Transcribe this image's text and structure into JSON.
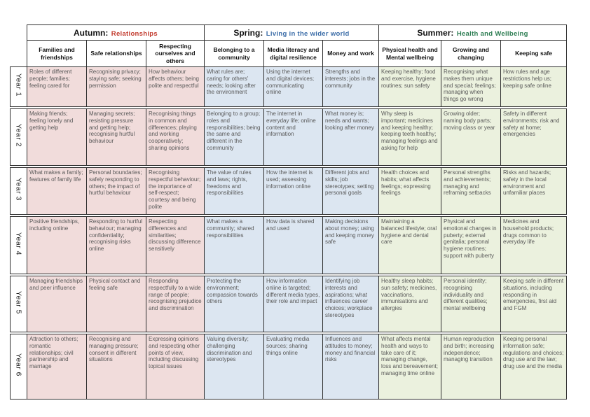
{
  "terms": [
    {
      "label": "Autumn:",
      "subtitle": "Relationships",
      "accent": "#c23b2e",
      "cell_bg": "#f1dcdb",
      "columns": [
        "Families and friendships",
        "Safe relationships",
        "Respecting ourselves and others"
      ]
    },
    {
      "label": "Spring:",
      "subtitle": "Living in the wider world",
      "accent": "#3c6da8",
      "cell_bg": "#dce6f1",
      "columns": [
        "Belonging to a community",
        "Media literacy and digital resilience",
        "Money and work"
      ]
    },
    {
      "label": "Summer:",
      "subtitle": "Health and Wellbeing",
      "accent": "#2c7d52",
      "cell_bg": "#ebf1de",
      "columns": [
        "Physical health and Mental wellbeing",
        "Growing and changing",
        "Keeping safe"
      ]
    }
  ],
  "years": [
    {
      "label": "Year 1",
      "cells": [
        "Roles of different people; families; feeling cared for",
        "Recognising privacy; staying safe; seeking permission",
        "How behaviour affects others; being polite and respectful",
        "What rules are; caring for others' needs; looking after the environment",
        "Using the internet and digital devices; communicating online",
        "Strengths and interests; jobs in the community",
        "Keeping healthy; food and exercise, hygiene routines; sun safety",
        "Recognising what makes them unique and special; feelings; managing when things go wrong",
        "How rules and age restrictions help us; keeping safe online"
      ]
    },
    {
      "label": "Year 2",
      "cells": [
        "Making friends; feeling lonely and getting help",
        "Managing secrets; resisting pressure and getting help; recognising hurtful behaviour",
        "Recognising things in common and differences; playing and working cooperatively; sharing opinions",
        "Belonging to a group; roles and responsibilities; being the same and different in the community",
        "The internet in everyday life; online content and information",
        "What money is; needs and wants; looking after money",
        "Why sleep is important; medicines and keeping healthy; keeping teeth healthy; managing feelings and asking for help",
        "Growing older; naming body parts; moving class or year",
        "Safety in different environments; risk and safety at home; emergencies"
      ]
    },
    {
      "label": "Year 3",
      "cells": [
        "What makes a family; features of family life",
        "Personal boundaries; safely responding to others; the impact of hurtful behaviour",
        "Recognising respectful behaviour; the importance of self-respect; courtesy and being polite",
        "The value of rules and laws; rights, freedoms and responsibilities",
        "How the internet is used; assessing information online",
        "Different jobs and skills; job stereotypes; setting personal goals",
        "Health choices and habits; what affects feelings; expressing feelings",
        "Personal strengths and achievements; managing and reframing setbacks",
        "Risks and hazards; safety in the local environment and unfamiliar places"
      ]
    },
    {
      "label": "Year 4",
      "cells": [
        "Positive friendships, including online",
        "Responding to hurtful behaviour; managing confidentiality; recognising risks online",
        "Respecting differences and similarities; discussing difference sensitively",
        "What makes a community; shared responsibilities",
        "How data is shared and used",
        "Making decisions about money; using and keeping money safe",
        "Maintaining a balanced lifestyle; oral hygiene and dental care",
        "Physical and emotional changes in puberty; external genitalia; personal hygiene routines; support with puberty",
        "Medicines and household products; drugs common to everyday life"
      ]
    },
    {
      "label": "Year 5",
      "cells": [
        "Managing friendships and peer influence",
        "Physical contact and feeling safe",
        "Responding respectfully to a wide range of people; recognising prejudice and discrimination",
        "Protecting the environment; compassion towards others",
        "How information online is targeted; different media types, their role and impact",
        "Identifying job interests and aspirations; what influences career choices; workplace stereotypes",
        "Healthy sleep habits; sun safety; medicines, vaccinations, immunisations and allergies",
        "Personal identity; recognising individuality and different qualities; mental wellbeing",
        "Keeping safe in different situations, including responding in emergencies, first aid and FGM"
      ]
    },
    {
      "label": "Year 6",
      "cells": [
        "Attraction to others; romantic relationships; civil partnership and marriage",
        "Recognising and managing pressure; consent in different situations",
        "Expressing opinions and respecting other points of view, including discussing topical issues",
        "Valuing diversity; challenging discrimination and stereotypes",
        "Evaluating media sources; sharing things online",
        "Influences and attitudes to money; money and financial risks",
        "What affects mental health and ways to take care of it; managing change, loss and bereavement; managing time online",
        "Human reproduction and birth; increasing independence; managing transition",
        "Keeping personal information safe; regulations and choices; drug use and the law; drug use and the media"
      ]
    }
  ],
  "colors": {
    "border": "#2f2f2f",
    "cell_text": "#595959"
  }
}
